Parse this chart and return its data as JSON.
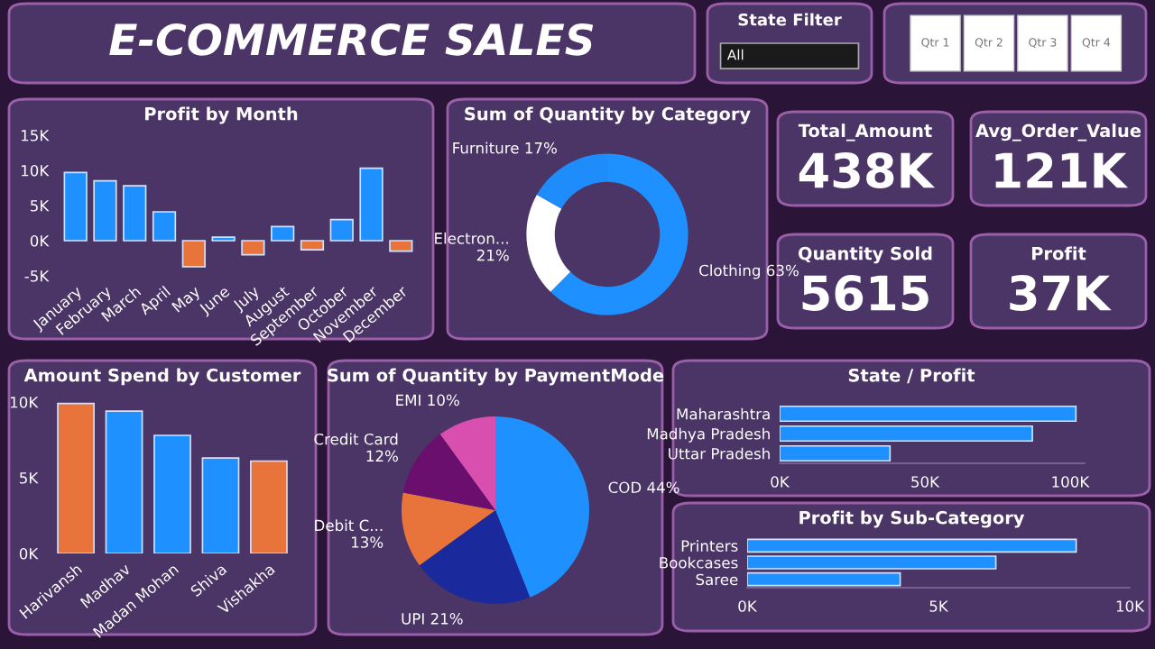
{
  "chart_data": [
    {
      "type": "other",
      "title": "E-COMMERCE SALES"
    },
    {
      "type": "other",
      "title": "State Filter",
      "annotations": [
        "All"
      ]
    },
    {
      "type": "other",
      "annotations": [
        "Qtr 1",
        "Qtr 2",
        "Qtr 3",
        "Qtr 4"
      ]
    },
    {
      "type": "bar",
      "title": "Profit by Month",
      "categories": [
        "January",
        "February",
        "March",
        "April",
        "May",
        "June",
        "July",
        "August",
        "September",
        "October",
        "November",
        "December"
      ],
      "values": [
        9700,
        8500,
        7800,
        4100,
        -3700,
        500,
        -2000,
        2000,
        -1300,
        3000,
        10300,
        -1500
      ],
      "colors": [
        "#1e90ff",
        "#1e90ff",
        "#1e90ff",
        "#1e90ff",
        "#e8743b",
        "#1e90ff",
        "#e8743b",
        "#1e90ff",
        "#e8743b",
        "#1e90ff",
        "#1e90ff",
        "#e8743b"
      ],
      "ylim": [
        -5000,
        15000
      ],
      "yticks": [
        {
          "value": -5000,
          "label": "-5K"
        },
        {
          "value": 0,
          "label": "0K"
        },
        {
          "value": 5000,
          "label": "5K"
        },
        {
          "value": 10000,
          "label": "10K"
        },
        {
          "value": 15000,
          "label": "15K"
        }
      ]
    },
    {
      "type": "donut",
      "title": "Sum of Quantity by Category",
      "categories": [
        "Clothing",
        "Electron...",
        "Furniture"
      ],
      "values": [
        63,
        21,
        17
      ],
      "value_labels": [
        "63%",
        "21%",
        "17%"
      ],
      "colors": [
        "#1e90ff",
        "#ffffff",
        "#1e8cfa"
      ]
    },
    {
      "type": "other",
      "title": "Total_Amount",
      "annotations": [
        "438K"
      ]
    },
    {
      "type": "other",
      "title": "Avg_Order_Value",
      "annotations": [
        "121K"
      ]
    },
    {
      "type": "other",
      "title": "Quantity Sold",
      "annotations": [
        "5615"
      ]
    },
    {
      "type": "other",
      "title": "Profit",
      "annotations": [
        "37K"
      ]
    },
    {
      "type": "bar",
      "title": "Amount Spend by Customer",
      "categories": [
        "Harivansh",
        "Madhav",
        "Madan Mohan",
        "Shiva",
        "Vishakha"
      ],
      "values": [
        9900,
        9400,
        7800,
        6300,
        6100
      ],
      "colors": [
        "#e8743b",
        "#1e90ff",
        "#1e90ff",
        "#1e90ff",
        "#e8743b"
      ],
      "ylim": [
        0,
        10000
      ],
      "yticks": [
        {
          "value": 0,
          "label": "0K"
        },
        {
          "value": 5000,
          "label": "5K"
        },
        {
          "value": 10000,
          "label": "10K"
        }
      ]
    },
    {
      "type": "pie",
      "title": "Sum of Quantity by PaymentMode",
      "categories": [
        "COD",
        "UPI",
        "Debit C...",
        "Credit Card",
        "EMI"
      ],
      "values": [
        44,
        21,
        13,
        12,
        10
      ],
      "value_labels": [
        "44%",
        "21%",
        "13%",
        "12%",
        "10%"
      ],
      "colors": [
        "#1e90ff",
        "#1a2a9c",
        "#e8743b",
        "#6b0f6f",
        "#d94fb0"
      ]
    },
    {
      "type": "bar",
      "title": "State / Profit",
      "orientation": "horizontal",
      "categories": [
        "Maharashtra",
        "Madhya Pradesh",
        "Uttar Pradesh"
      ],
      "values": [
        102000,
        87000,
        38000
      ],
      "color": "#1e90ff",
      "xlim": [
        0,
        105000
      ],
      "xticks": [
        {
          "value": 0,
          "label": "0K"
        },
        {
          "value": 50000,
          "label": "50K"
        },
        {
          "value": 100000,
          "label": "100K"
        }
      ]
    },
    {
      "type": "bar",
      "title": "Profit by Sub-Category",
      "orientation": "horizontal",
      "categories": [
        "Printers",
        "Bookcases",
        "Saree"
      ],
      "values": [
        8600,
        6500,
        4000
      ],
      "color": "#1e90ff",
      "xlim": [
        0,
        10000
      ],
      "xticks": [
        {
          "value": 0,
          "label": "0K"
        },
        {
          "value": 5000,
          "label": "5K"
        },
        {
          "value": 10000,
          "label": "10K"
        }
      ]
    }
  ]
}
